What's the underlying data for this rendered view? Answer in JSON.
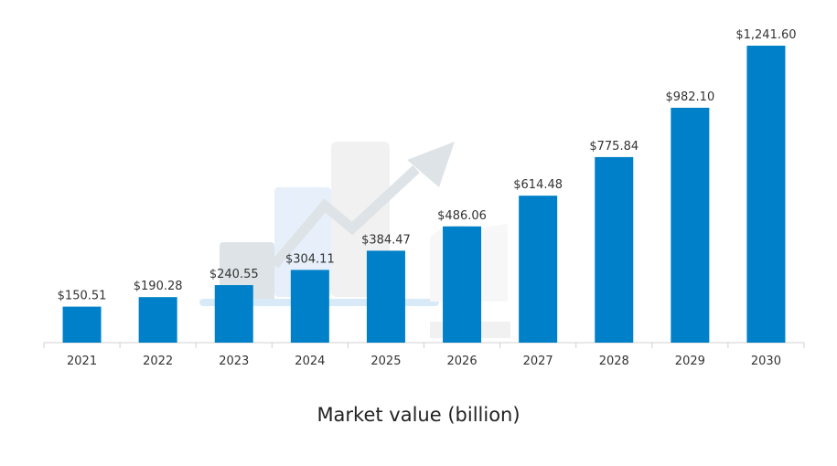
{
  "chart_data": {
    "type": "bar",
    "categories": [
      "2021",
      "2022",
      "2023",
      "2024",
      "2025",
      "2026",
      "2027",
      "2028",
      "2029",
      "2030"
    ],
    "values": [
      150.51,
      190.28,
      240.55,
      304.11,
      384.47,
      486.06,
      614.48,
      775.84,
      982.1,
      1241.6
    ],
    "data_labels": [
      "$150.51",
      "$190.28",
      "$240.55",
      "$304.11",
      "$384.47",
      "$486.06",
      "$614.48",
      "$775.84",
      "$982.10",
      "$1,241.60"
    ],
    "title": "",
    "xlabel": "Market value (billion)",
    "ylabel": "",
    "ylim": [
      0,
      1300
    ],
    "grid": false,
    "legend": "none",
    "bar_color": "#0080c8",
    "axis_color": "#d0d0d0",
    "label_color": "#333333"
  }
}
